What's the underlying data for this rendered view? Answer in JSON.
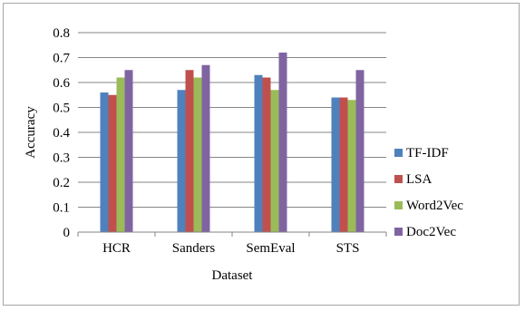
{
  "chart_data": {
    "type": "bar",
    "categories": [
      "HCR",
      "Sanders",
      "SemEval",
      "STS"
    ],
    "series": [
      {
        "name": "TF-IDF",
        "values": [
          0.56,
          0.57,
          0.63,
          0.54
        ],
        "color": "#4f81bd"
      },
      {
        "name": "LSA",
        "values": [
          0.55,
          0.65,
          0.62,
          0.54
        ],
        "color": "#c0504d"
      },
      {
        "name": "Word2Vec",
        "values": [
          0.62,
          0.62,
          0.57,
          0.53
        ],
        "color": "#9bbb59"
      },
      {
        "name": "Doc2Vec",
        "values": [
          0.65,
          0.67,
          0.72,
          0.65
        ],
        "color": "#8064a2"
      }
    ],
    "title": "",
    "xlabel": "Dataset",
    "ylabel": "Accuracy",
    "ylim": [
      0,
      0.8
    ],
    "yticks": [
      "0",
      "0.1",
      "0.2",
      "0.3",
      "0.4",
      "0.5",
      "0.6",
      "0.7",
      "0.8"
    ],
    "grid": true,
    "legend_position": "right"
  }
}
